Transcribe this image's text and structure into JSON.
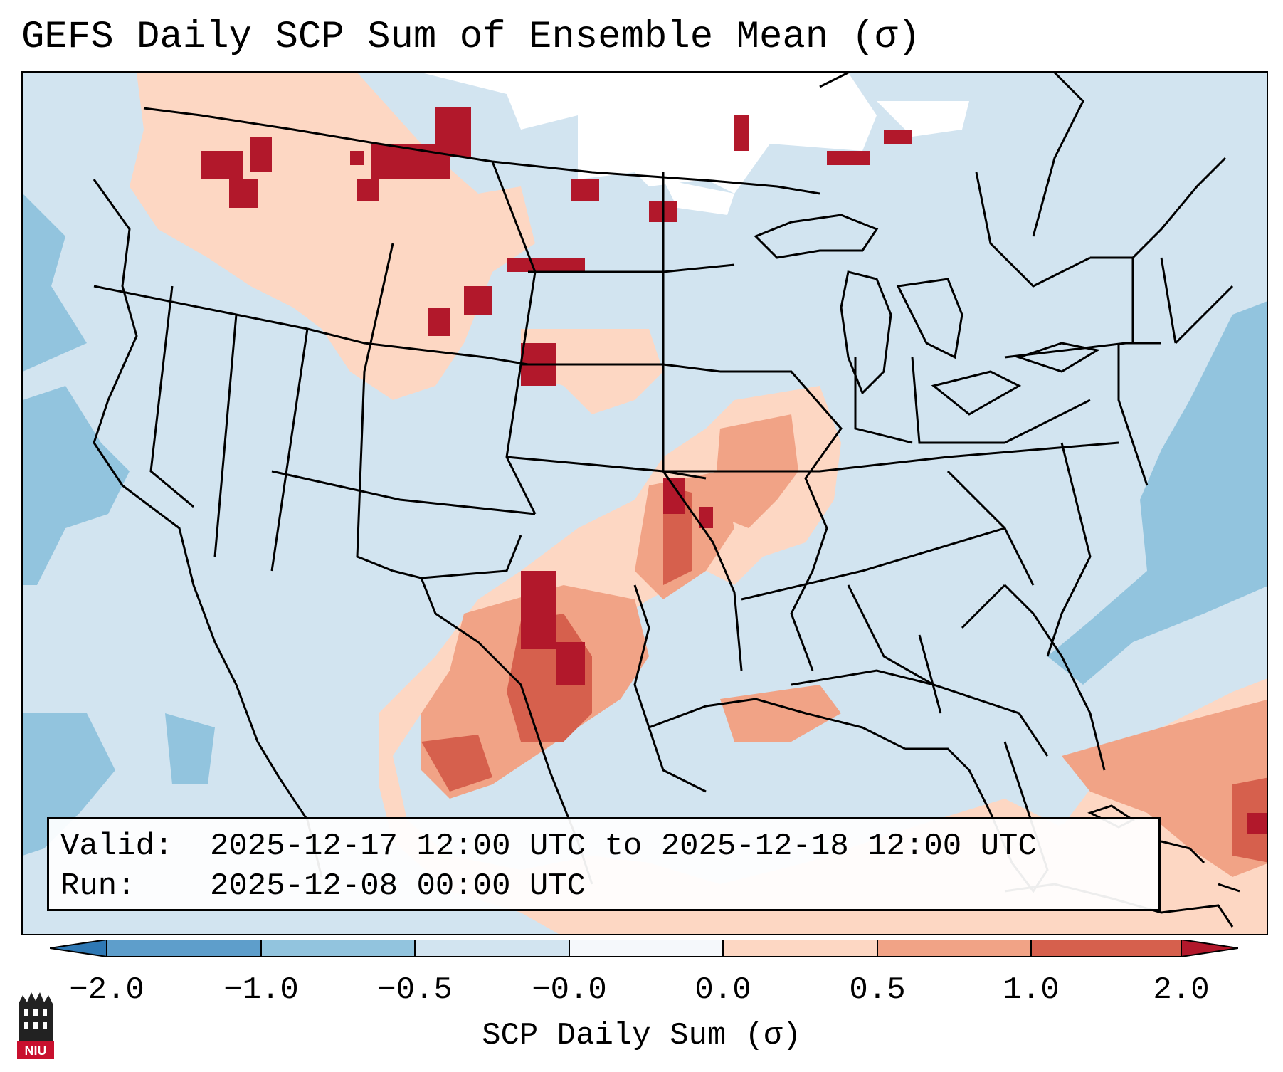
{
  "title": "GEFS Daily SCP Sum of Ensemble Mean (σ)",
  "info": {
    "valid_label": "Valid:",
    "valid_value": "2025-12-17 12:00 UTC to 2025-12-18 12:00 UTC",
    "run_label": "Run:",
    "run_value": "2025-12-08 00:00 UTC"
  },
  "colorbar": {
    "label": "SCP Daily Sum (σ)",
    "ticks": [
      "−2.0",
      "−1.0",
      "−0.5",
      "−0.0",
      "0.0",
      "0.5",
      "1.0",
      "2.0"
    ],
    "colors": [
      "#2e78b4",
      "#92c4de",
      "#d2e4f0",
      "#f5f8fb",
      "#fdd7c3",
      "#f1a386",
      "#d6604d",
      "#b2182b"
    ],
    "extend": "both"
  },
  "logo": {
    "text": "NIU"
  },
  "legend_colors": {
    "neg_strong": "#2e78b4",
    "neg_mid": "#92c4de",
    "neg_light": "#d2e4f0",
    "neutral": "#ffffff",
    "pos_light": "#fdd7c3",
    "pos_mid": "#f1a386",
    "pos_strong": "#d6604d",
    "pos_max": "#b2182b"
  }
}
